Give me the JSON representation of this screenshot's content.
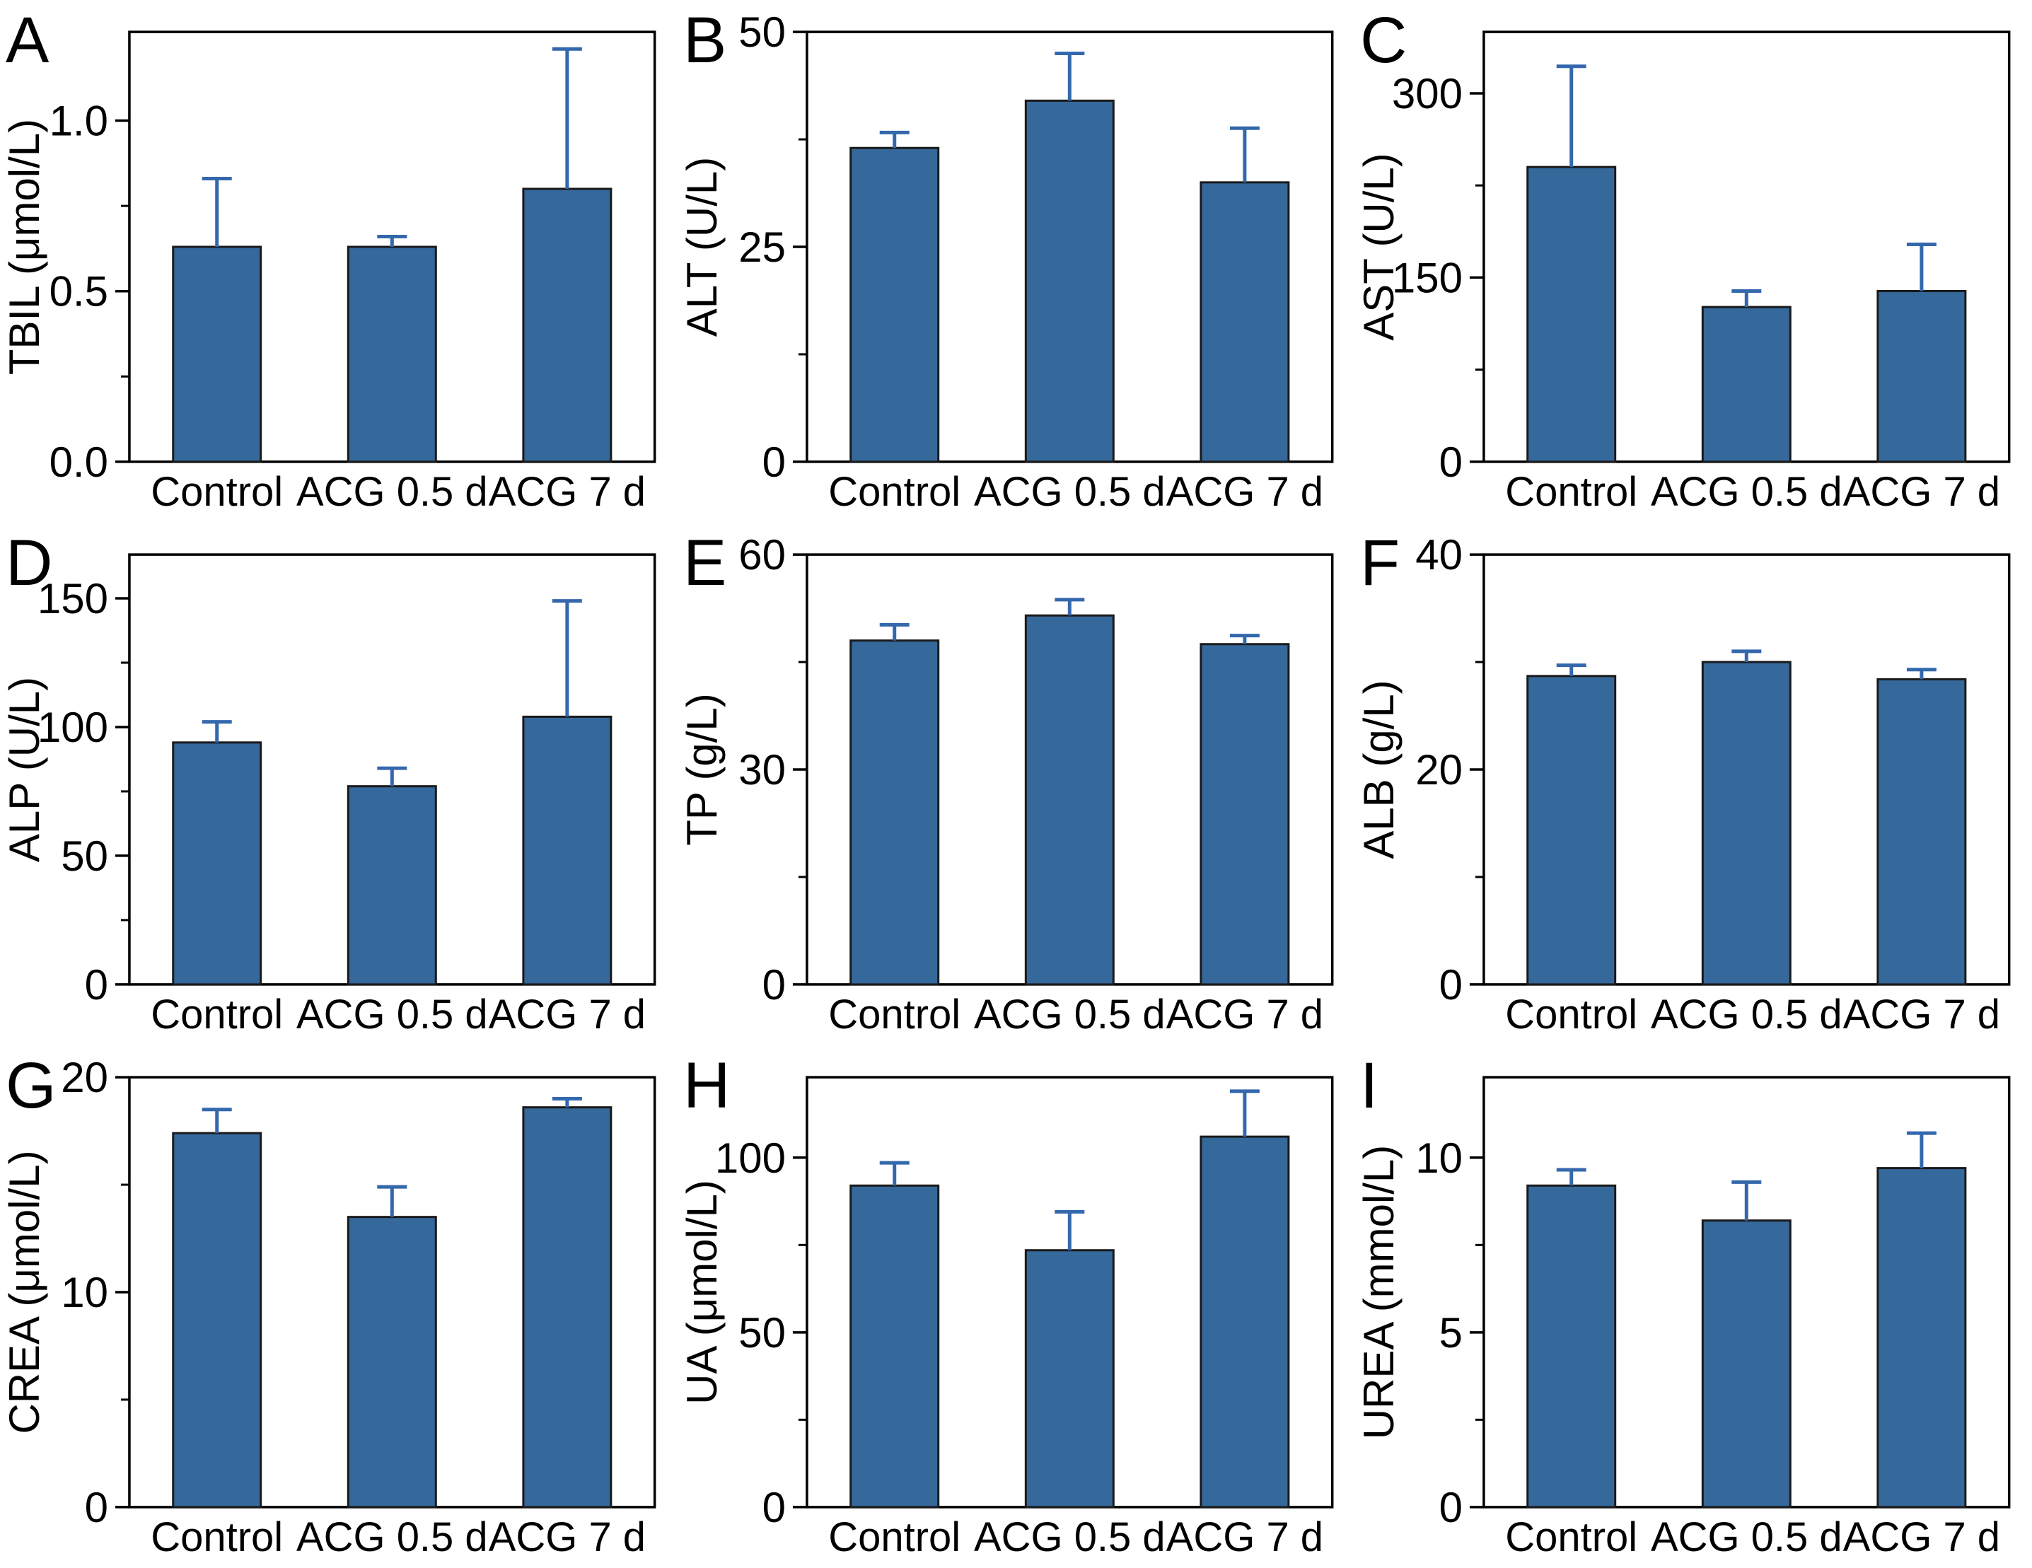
{
  "categories": [
    "Control",
    "ACG 0.5 d",
    "ACG 7 d"
  ],
  "colors": {
    "bar_fill": "#35689B",
    "bar_edge": "#1a1a1a",
    "error_bar": "#3468AD",
    "axis": "#000000",
    "background": "#ffffff"
  },
  "chart_data": [
    {
      "type": "bar",
      "panel": "A",
      "ylabel": "TBIL (μmol/L)",
      "xlabel": "",
      "categories": [
        "Control",
        "ACG 0.5 d",
        "ACG 7 d"
      ],
      "values": [
        0.63,
        0.63,
        0.8
      ],
      "errors": [
        0.2,
        0.03,
        0.41
      ],
      "yticks": {
        "values": [
          0,
          0.5,
          1.0
        ],
        "labels": [
          "0.0",
          "0.5",
          "1.0"
        ]
      },
      "minor_ticks": [
        0.25,
        0.75
      ],
      "ylim": [
        0,
        1.26
      ],
      "grid": "off",
      "legend": "none"
    },
    {
      "type": "bar",
      "panel": "B",
      "ylabel": "ALT (U/L)",
      "xlabel": "",
      "categories": [
        "Control",
        "ACG 0.5 d",
        "ACG 7 d"
      ],
      "values": [
        36.5,
        42.0,
        32.5
      ],
      "errors": [
        1.8,
        5.5,
        6.3
      ],
      "yticks": {
        "values": [
          0,
          25,
          50
        ],
        "labels": [
          "0",
          "25",
          "50"
        ]
      },
      "minor_ticks": [
        12.5,
        37.5
      ],
      "ylim": [
        0,
        50
      ],
      "grid": "off",
      "legend": "none"
    },
    {
      "type": "bar",
      "panel": "C",
      "ylabel": "AST (U/L)",
      "xlabel": "",
      "categories": [
        "Control",
        "ACG 0.5 d",
        "ACG 7 d"
      ],
      "values": [
        240,
        126,
        139
      ],
      "errors": [
        82,
        13,
        38
      ],
      "yticks": {
        "values": [
          0,
          150,
          300
        ],
        "labels": [
          "0",
          "150",
          "300"
        ]
      },
      "minor_ticks": [
        75,
        225
      ],
      "ylim": [
        0,
        350
      ],
      "grid": "off",
      "legend": "none"
    },
    {
      "type": "bar",
      "panel": "D",
      "ylabel": "ALP (U/L)",
      "xlabel": "",
      "categories": [
        "Control",
        "ACG 0.5 d",
        "ACG 7 d"
      ],
      "values": [
        94,
        77,
        104
      ],
      "errors": [
        8,
        7,
        45
      ],
      "yticks": {
        "values": [
          0,
          50,
          100,
          150
        ],
        "labels": [
          "0",
          "50",
          "100",
          "150"
        ]
      },
      "minor_ticks": [
        25,
        75,
        125
      ],
      "ylim": [
        0,
        167
      ],
      "grid": "off",
      "legend": "none"
    },
    {
      "type": "bar",
      "panel": "E",
      "ylabel": "TP (g/L)",
      "xlabel": "",
      "categories": [
        "Control",
        "ACG 0.5 d",
        "ACG 7 d"
      ],
      "values": [
        48.0,
        51.5,
        47.5
      ],
      "errors": [
        2.2,
        2.2,
        1.2
      ],
      "yticks": {
        "values": [
          0,
          30,
          60
        ],
        "labels": [
          "0",
          "30",
          "60"
        ]
      },
      "minor_ticks": [
        15,
        45
      ],
      "ylim": [
        0,
        60
      ],
      "grid": "off",
      "legend": "none"
    },
    {
      "type": "bar",
      "panel": "F",
      "ylabel": "ALB (g/L)",
      "xlabel": "",
      "categories": [
        "Control",
        "ACG 0.5 d",
        "ACG 7 d"
      ],
      "values": [
        28.7,
        30.0,
        28.4
      ],
      "errors": [
        1.0,
        1.0,
        0.9
      ],
      "yticks": {
        "values": [
          0,
          20,
          40
        ],
        "labels": [
          "0",
          "20",
          "40"
        ]
      },
      "minor_ticks": [
        10,
        30
      ],
      "ylim": [
        0,
        40
      ],
      "grid": "off",
      "legend": "none"
    },
    {
      "type": "bar",
      "panel": "G",
      "ylabel": "CREA (μmol/L)",
      "xlabel": "",
      "categories": [
        "Control",
        "ACG 0.5 d",
        "ACG 7 d"
      ],
      "values": [
        17.4,
        13.5,
        18.6
      ],
      "errors": [
        1.1,
        1.4,
        0.4
      ],
      "yticks": {
        "values": [
          0,
          10,
          20
        ],
        "labels": [
          "0",
          "10",
          "20"
        ]
      },
      "minor_ticks": [
        5,
        15
      ],
      "ylim": [
        0,
        20
      ],
      "grid": "off",
      "legend": "none"
    },
    {
      "type": "bar",
      "panel": "H",
      "ylabel": "UA (μmol/L)",
      "xlabel": "",
      "categories": [
        "Control",
        "ACG 0.5 d",
        "ACG 7 d"
      ],
      "values": [
        92,
        73.5,
        106
      ],
      "errors": [
        6.5,
        11,
        13
      ],
      "yticks": {
        "values": [
          0,
          50,
          100
        ],
        "labels": [
          "0",
          "50",
          "100"
        ]
      },
      "minor_ticks": [
        25,
        75
      ],
      "ylim": [
        0,
        123
      ],
      "grid": "off",
      "legend": "none"
    },
    {
      "type": "bar",
      "panel": "I",
      "ylabel": "UREA (mmol/L)",
      "xlabel": "",
      "categories": [
        "Control",
        "ACG 0.5 d",
        "ACG 7 d"
      ],
      "values": [
        9.2,
        8.2,
        9.7
      ],
      "errors": [
        0.45,
        1.1,
        1.0
      ],
      "yticks": {
        "values": [
          0,
          5,
          10
        ],
        "labels": [
          "0",
          "5",
          "10"
        ]
      },
      "minor_ticks": [
        2.5,
        7.5
      ],
      "ylim": [
        0,
        12.3
      ],
      "grid": "off",
      "legend": "none"
    }
  ]
}
